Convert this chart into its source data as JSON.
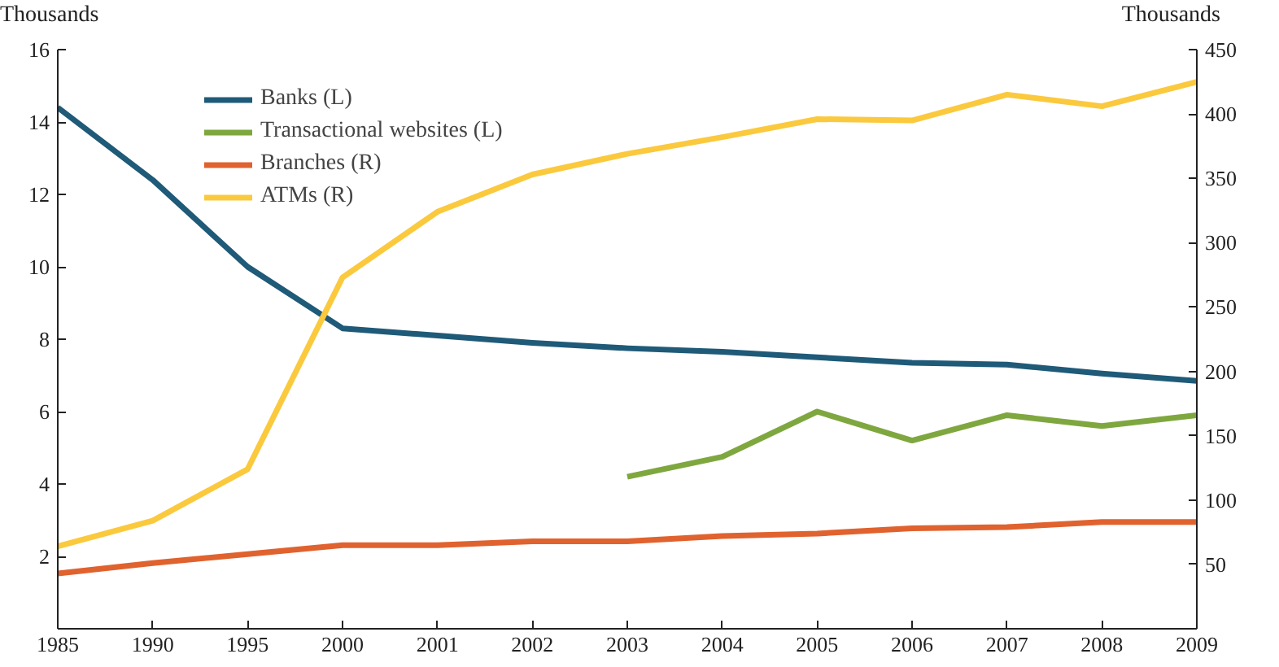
{
  "chart_data": {
    "type": "line",
    "ylabel": "Thousands",
    "y2label": "Thousands",
    "categories": [
      "1985",
      "1990",
      "1995",
      "2000",
      "2001",
      "2002",
      "2003",
      "2004",
      "2005",
      "2006",
      "2007",
      "2008",
      "2009"
    ],
    "series": [
      {
        "name": "Banks (L)",
        "color": "#1f5a78",
        "values": [
          14.4,
          12.4,
          10.0,
          8.3,
          8.1,
          7.9,
          7.75,
          7.65,
          7.5,
          7.35,
          7.3,
          7.05,
          6.85
        ]
      },
      {
        "name": "Transactional websites (L)",
        "color": "#7fa73f",
        "values": [
          null,
          null,
          null,
          null,
          null,
          null,
          4.2,
          4.75,
          6.0,
          5.2,
          5.9,
          5.6,
          5.9
        ]
      },
      {
        "name": "Branches (R)",
        "color": "#e0622f",
        "axis": "y2",
        "values": [
          43,
          51,
          58,
          65,
          65,
          68,
          68,
          72,
          74,
          78,
          79,
          83,
          83
        ]
      },
      {
        "name": "ATMs (R)",
        "color": "#fbc93d",
        "axis": "y2",
        "values": [
          64,
          84,
          124,
          273,
          324,
          353,
          369,
          382,
          396,
          395,
          415,
          406,
          425
        ]
      }
    ],
    "ylim": [
      0,
      16
    ],
    "yticks": [
      2,
      4,
      6,
      8,
      10,
      12,
      14,
      16
    ],
    "y2lim": [
      0,
      450
    ],
    "y2ticks": [
      50,
      100,
      150,
      200,
      250,
      300,
      350,
      400,
      450
    ],
    "legend": "top left",
    "grid": false
  }
}
